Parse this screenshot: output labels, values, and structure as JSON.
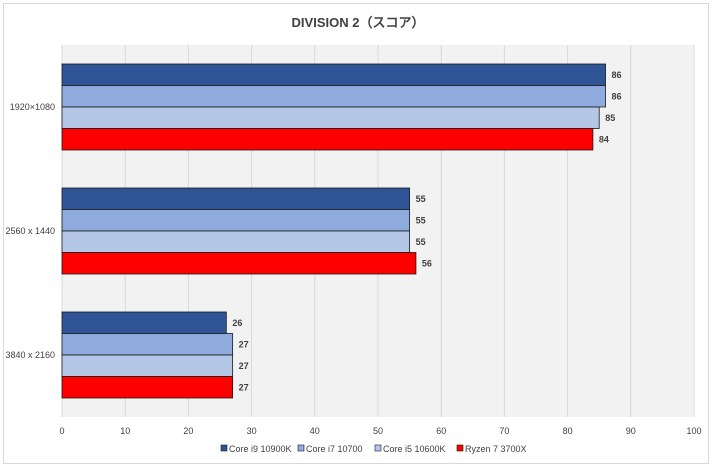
{
  "chart_data": {
    "type": "bar",
    "orientation": "horizontal",
    "title": "DIVISION 2（スコア）",
    "categories": [
      "1920×1080",
      "2560 x 1440",
      "3840 x 2160"
    ],
    "series": [
      {
        "name": "Core i9 10900K",
        "color": "#2F5597",
        "values": [
          86,
          55,
          26
        ]
      },
      {
        "name": "Core i7 10700",
        "color": "#8FAADC",
        "values": [
          86,
          55,
          27
        ]
      },
      {
        "name": "Core i5 10600K",
        "color": "#B4C7E7",
        "values": [
          85,
          55,
          27
        ]
      },
      {
        "name": "Ryzen 7 3700X",
        "color": "#FF0000",
        "values": [
          84,
          56,
          27
        ]
      }
    ],
    "xlim": [
      0,
      100
    ],
    "xticks": [
      0,
      10,
      20,
      30,
      40,
      50,
      60,
      70,
      80,
      90,
      100
    ],
    "grid": true,
    "legend": "bottom",
    "data_labels": true
  }
}
